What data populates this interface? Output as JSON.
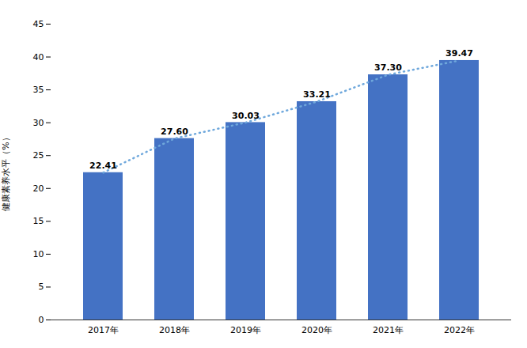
{
  "chart_data": {
    "type": "bar",
    "categories": [
      "2017年",
      "2018年",
      "2019年",
      "2020年",
      "2021年",
      "2022年"
    ],
    "series": [
      {
        "type": "bar",
        "color": "#4472C4",
        "values": [
          22.41,
          27.6,
          30.03,
          33.21,
          37.3,
          39.47
        ],
        "data_labels": true,
        "value_labels": [
          "22.41",
          "27.60",
          "30.03",
          "33.21",
          "37.30",
          "39.47"
        ]
      },
      {
        "type": "line",
        "color": "#6FA8DC",
        "line_style": "dotted",
        "values": [
          22.41,
          27.6,
          30.03,
          33.21,
          37.3,
          39.47
        ]
      }
    ],
    "ylabel": "健康素养水平（%）",
    "ylim": [
      0,
      45
    ],
    "yticks": [
      0,
      5,
      10,
      15,
      20,
      25,
      30,
      35,
      40,
      45
    ],
    "grid": false,
    "legend": "none"
  }
}
